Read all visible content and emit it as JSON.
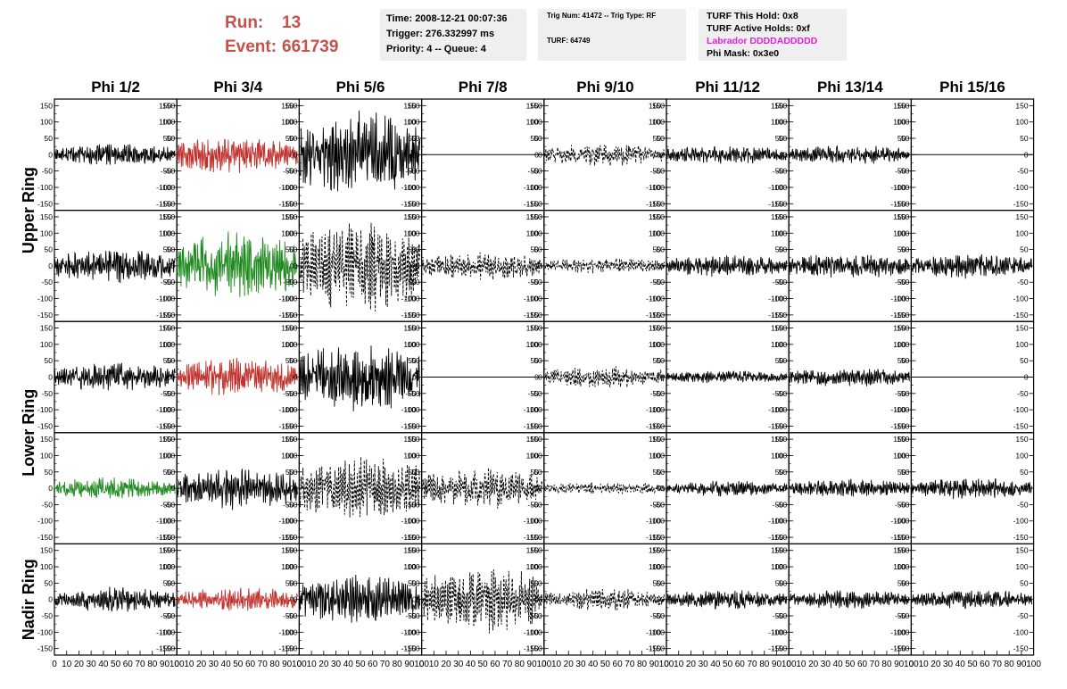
{
  "header": {
    "run_label": "Run:",
    "run_value": "13",
    "event_label": "Event:",
    "event_value": "661739"
  },
  "info_time": {
    "time": "Time: 2008-12-21 00:07:36",
    "trigger": "Trigger: 276.332997 ms",
    "priority": "Priority: 4 -- Queue: 4"
  },
  "info_trig": {
    "trig": "Trig Num: 41472 -- Trig Type: RF",
    "turf": "TURF: 64749"
  },
  "info_turf": {
    "hold": "TURF This Hold: 0x8",
    "active": "TURF Active Holds: 0xf",
    "labrador": "Labrador DDDDADDDDD",
    "phimask": "Phi Mask: 0x3e0"
  },
  "colors": {
    "header_red": "#c8504a",
    "labrador_magenta": "#e020e0",
    "trace_black": "#000000",
    "trace_red": "#c0302c",
    "trace_green": "#1f8a1f",
    "box_bg": "#efefef"
  },
  "chart_data": {
    "type": "line",
    "columns": [
      "Phi 1/2",
      "Phi 3/4",
      "Phi 5/6",
      "Phi 7/8",
      "Phi 9/10",
      "Phi 11/12",
      "Phi 13/14",
      "Phi 15/16"
    ],
    "ring_labels": [
      "Upper Ring",
      "Lower Ring",
      "Nadir Ring"
    ],
    "rows": 5,
    "xlim": [
      0,
      100
    ],
    "ylim": [
      -170,
      170
    ],
    "y_ticks": [
      "150",
      "100",
      "50",
      "0",
      "-50",
      "-100",
      "-150"
    ],
    "y_tick_values": [
      150,
      100,
      50,
      0,
      -50,
      -100,
      -150
    ],
    "x_ticks": [
      "0",
      "10",
      "20",
      "30",
      "40",
      "50",
      "60",
      "70",
      "80",
      "90",
      "100"
    ],
    "x_tick_values": [
      0,
      10,
      20,
      30,
      40,
      50,
      60,
      70,
      80,
      90,
      100
    ],
    "panels": [
      [
        {
          "a": 35,
          "s": "solid",
          "c": "black"
        },
        {
          "a": 60,
          "s": "solid",
          "c": "red"
        },
        {
          "a": 140,
          "s": "solid",
          "c": "black"
        },
        {
          "a": 0,
          "s": "flat",
          "c": "black"
        },
        {
          "a": 35,
          "s": "dashed",
          "c": "black"
        },
        {
          "a": 30,
          "s": "solid",
          "c": "black"
        },
        {
          "a": 30,
          "s": "solid",
          "c": "black"
        },
        {
          "a": 0,
          "s": "flat",
          "c": "black"
        }
      ],
      [
        {
          "a": 55,
          "s": "solid",
          "c": "black"
        },
        {
          "a": 110,
          "s": "solid",
          "c": "green"
        },
        {
          "a": 150,
          "s": "dashed",
          "c": "black"
        },
        {
          "a": 45,
          "s": "dashed",
          "c": "black"
        },
        {
          "a": 25,
          "s": "dashed",
          "c": "black"
        },
        {
          "a": 35,
          "s": "solid",
          "c": "black"
        },
        {
          "a": 40,
          "s": "solid",
          "c": "black"
        },
        {
          "a": 40,
          "s": "solid",
          "c": "black"
        }
      ],
      [
        {
          "a": 45,
          "s": "solid",
          "c": "black"
        },
        {
          "a": 60,
          "s": "solid",
          "c": "red"
        },
        {
          "a": 110,
          "s": "solid",
          "c": "black"
        },
        {
          "a": 0,
          "s": "flat",
          "c": "black"
        },
        {
          "a": 35,
          "s": "dashed",
          "c": "black"
        },
        {
          "a": 20,
          "s": "solid",
          "c": "black"
        },
        {
          "a": 30,
          "s": "solid",
          "c": "black"
        },
        {
          "a": 0,
          "s": "flat",
          "c": "black"
        }
      ],
      [
        {
          "a": 35,
          "s": "solid",
          "c": "green"
        },
        {
          "a": 70,
          "s": "solid",
          "c": "black"
        },
        {
          "a": 110,
          "s": "dashed",
          "c": "black"
        },
        {
          "a": 65,
          "s": "dashed",
          "c": "black"
        },
        {
          "a": 20,
          "s": "dashed",
          "c": "black"
        },
        {
          "a": 25,
          "s": "solid",
          "c": "black"
        },
        {
          "a": 30,
          "s": "solid",
          "c": "black"
        },
        {
          "a": 35,
          "s": "solid",
          "c": "black"
        }
      ],
      [
        {
          "a": 40,
          "s": "solid",
          "c": "black"
        },
        {
          "a": 40,
          "s": "solid",
          "c": "red"
        },
        {
          "a": 80,
          "s": "solid",
          "c": "black"
        },
        {
          "a": 110,
          "s": "dashed",
          "c": "black"
        },
        {
          "a": 35,
          "s": "dashed",
          "c": "black"
        },
        {
          "a": 30,
          "s": "solid",
          "c": "black"
        },
        {
          "a": 30,
          "s": "solid",
          "c": "black"
        },
        {
          "a": 30,
          "s": "solid",
          "c": "black"
        }
      ]
    ]
  }
}
